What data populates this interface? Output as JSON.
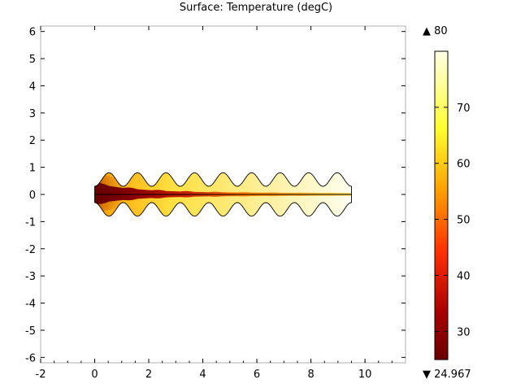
{
  "chart_data": {
    "type": "heatmap",
    "title": "Surface: Temperature (degC)",
    "x_ticks": [
      "-2",
      "0",
      "2",
      "4",
      "6",
      "8",
      "10"
    ],
    "y_ticks": [
      "6",
      "5",
      "4",
      "3",
      "2",
      "1",
      "0",
      "-1",
      "-2",
      "-3",
      "-4",
      "-5",
      "-6"
    ],
    "xlim": [
      -2,
      11.5
    ],
    "ylim": [
      -6.2,
      6.2
    ],
    "colorbar": {
      "max_label": "80",
      "min_label": "24.967",
      "max_marker": "▲",
      "min_marker": "▼",
      "tick_labels": [
        "70",
        "60",
        "50",
        "40",
        "30"
      ],
      "tick_values": [
        70,
        60,
        50,
        40,
        30
      ],
      "range": [
        24.967,
        80
      ],
      "colormap": "heat",
      "colors": [
        "#6b0000",
        "#c41a00",
        "#ff5a00",
        "#ffb000",
        "#ffff40",
        "#ffffd8"
      ]
    },
    "geometry": {
      "x_range": [
        0,
        9.5
      ],
      "wave_periods": 9,
      "upper_wave_center": 0.55,
      "lower_wave_center": -0.55,
      "wave_amplitude": 0.25,
      "centerline_y": 0
    }
  }
}
